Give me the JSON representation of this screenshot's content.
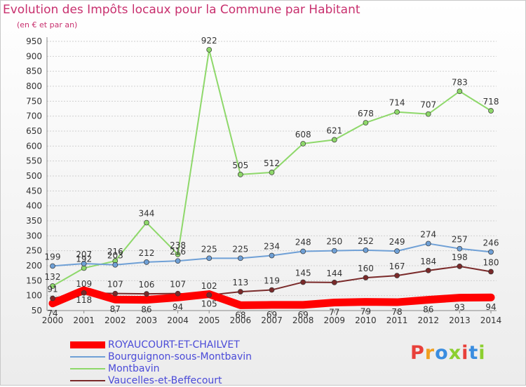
{
  "header": {
    "title": "Evolution des Impôts locaux pour la Commune par Habitant",
    "subtitle": "(en € et par an)"
  },
  "colors": {
    "title": "#c8306e",
    "legend_text": "#4a4ad8",
    "grid": "#d0d0d0"
  },
  "logo": {
    "text": "Proxiti",
    "letter_colors": [
      "#e8403a",
      "#f0a020",
      "#3a8de0",
      "#8ccf30",
      "#e8403a",
      "#3a8de0",
      "#8ccf30"
    ]
  },
  "chart_data": {
    "type": "line",
    "title": "Evolution des Impôts locaux pour la Commune par Habitant",
    "subtitle": "(en € et par an)",
    "x": [
      "2000",
      "2001",
      "2002",
      "2003",
      "2004",
      "2005",
      "2006",
      "2007",
      "2008",
      "2009",
      "2010",
      "2011",
      "2012",
      "2013",
      "2014"
    ],
    "ylim": [
      50,
      950
    ],
    "yticks": [
      50,
      100,
      150,
      200,
      250,
      300,
      350,
      400,
      450,
      500,
      550,
      600,
      650,
      700,
      750,
      800,
      850,
      900,
      950
    ],
    "grid": "horizontal",
    "legend_position": "bottom-left",
    "series": [
      {
        "name": "ROYAUCOURT-ET-CHAILVET",
        "color": "#ff0000",
        "values": [
          74,
          118,
          87,
          86,
          94,
          105,
          68,
          69,
          69,
          77,
          79,
          78,
          86,
          93,
          94
        ],
        "labels": [
          "74",
          "118",
          "87",
          "86",
          "94",
          "105",
          "68",
          "69",
          "69",
          "77",
          "79",
          "78",
          "86",
          "93",
          "94"
        ]
      },
      {
        "name": "Bourguignon-sous-Montbavin",
        "color": "#6fa0d6",
        "values": [
          199,
          207,
          203,
          212,
          216,
          225,
          225,
          234,
          248,
          250,
          252,
          249,
          274,
          257,
          246
        ],
        "labels": [
          "199",
          "207",
          "203",
          "212",
          "216",
          "225",
          "225",
          "234",
          "248",
          "250",
          "252",
          "249",
          "274",
          "257",
          "246"
        ]
      },
      {
        "name": "Montbavin",
        "color": "#8ed86a",
        "values": [
          132,
          192,
          216,
          344,
          238,
          922,
          505,
          512,
          608,
          621,
          678,
          714,
          707,
          783,
          718
        ],
        "labels": [
          "132",
          "192",
          "216",
          "344",
          "238",
          "922",
          "505",
          "512",
          "608",
          "621",
          "678",
          "714",
          "707",
          "783",
          "718"
        ]
      },
      {
        "name": "Vaucelles-et-Beffecourt",
        "color": "#7a2a2a",
        "values": [
          91,
          109,
          107,
          106,
          107,
          102,
          113,
          119,
          145,
          144,
          160,
          167,
          184,
          198,
          180
        ],
        "labels": [
          "91",
          "109",
          "107",
          "106",
          "107",
          "102",
          "113",
          "119",
          "145",
          "144",
          "160",
          "167",
          "184",
          "198",
          "180"
        ]
      }
    ]
  }
}
